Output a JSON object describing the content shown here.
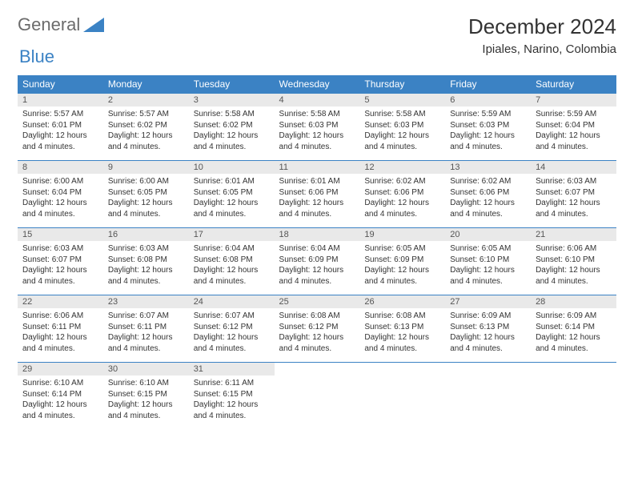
{
  "brand": {
    "part1": "General",
    "part2": "Blue"
  },
  "title": "December 2024",
  "location": "Ipiales, Narino, Colombia",
  "colors": {
    "header_bg": "#3b82c4",
    "header_text": "#ffffff",
    "daynum_bg": "#e9e9e9",
    "cell_border": "#3b82c4",
    "body_text": "#333333",
    "logo_gray": "#6b6b6b",
    "logo_blue": "#3b82c4",
    "page_bg": "#ffffff"
  },
  "typography": {
    "title_fontsize": 26,
    "location_fontsize": 15,
    "header_fontsize": 12,
    "daynum_fontsize": 11,
    "cell_fontsize": 10
  },
  "day_headers": [
    "Sunday",
    "Monday",
    "Tuesday",
    "Wednesday",
    "Thursday",
    "Friday",
    "Saturday"
  ],
  "weeks": [
    [
      {
        "num": "1",
        "sunrise": "5:57 AM",
        "sunset": "6:01 PM",
        "daylight": "12 hours and 4 minutes."
      },
      {
        "num": "2",
        "sunrise": "5:57 AM",
        "sunset": "6:02 PM",
        "daylight": "12 hours and 4 minutes."
      },
      {
        "num": "3",
        "sunrise": "5:58 AM",
        "sunset": "6:02 PM",
        "daylight": "12 hours and 4 minutes."
      },
      {
        "num": "4",
        "sunrise": "5:58 AM",
        "sunset": "6:03 PM",
        "daylight": "12 hours and 4 minutes."
      },
      {
        "num": "5",
        "sunrise": "5:58 AM",
        "sunset": "6:03 PM",
        "daylight": "12 hours and 4 minutes."
      },
      {
        "num": "6",
        "sunrise": "5:59 AM",
        "sunset": "6:03 PM",
        "daylight": "12 hours and 4 minutes."
      },
      {
        "num": "7",
        "sunrise": "5:59 AM",
        "sunset": "6:04 PM",
        "daylight": "12 hours and 4 minutes."
      }
    ],
    [
      {
        "num": "8",
        "sunrise": "6:00 AM",
        "sunset": "6:04 PM",
        "daylight": "12 hours and 4 minutes."
      },
      {
        "num": "9",
        "sunrise": "6:00 AM",
        "sunset": "6:05 PM",
        "daylight": "12 hours and 4 minutes."
      },
      {
        "num": "10",
        "sunrise": "6:01 AM",
        "sunset": "6:05 PM",
        "daylight": "12 hours and 4 minutes."
      },
      {
        "num": "11",
        "sunrise": "6:01 AM",
        "sunset": "6:06 PM",
        "daylight": "12 hours and 4 minutes."
      },
      {
        "num": "12",
        "sunrise": "6:02 AM",
        "sunset": "6:06 PM",
        "daylight": "12 hours and 4 minutes."
      },
      {
        "num": "13",
        "sunrise": "6:02 AM",
        "sunset": "6:06 PM",
        "daylight": "12 hours and 4 minutes."
      },
      {
        "num": "14",
        "sunrise": "6:03 AM",
        "sunset": "6:07 PM",
        "daylight": "12 hours and 4 minutes."
      }
    ],
    [
      {
        "num": "15",
        "sunrise": "6:03 AM",
        "sunset": "6:07 PM",
        "daylight": "12 hours and 4 minutes."
      },
      {
        "num": "16",
        "sunrise": "6:03 AM",
        "sunset": "6:08 PM",
        "daylight": "12 hours and 4 minutes."
      },
      {
        "num": "17",
        "sunrise": "6:04 AM",
        "sunset": "6:08 PM",
        "daylight": "12 hours and 4 minutes."
      },
      {
        "num": "18",
        "sunrise": "6:04 AM",
        "sunset": "6:09 PM",
        "daylight": "12 hours and 4 minutes."
      },
      {
        "num": "19",
        "sunrise": "6:05 AM",
        "sunset": "6:09 PM",
        "daylight": "12 hours and 4 minutes."
      },
      {
        "num": "20",
        "sunrise": "6:05 AM",
        "sunset": "6:10 PM",
        "daylight": "12 hours and 4 minutes."
      },
      {
        "num": "21",
        "sunrise": "6:06 AM",
        "sunset": "6:10 PM",
        "daylight": "12 hours and 4 minutes."
      }
    ],
    [
      {
        "num": "22",
        "sunrise": "6:06 AM",
        "sunset": "6:11 PM",
        "daylight": "12 hours and 4 minutes."
      },
      {
        "num": "23",
        "sunrise": "6:07 AM",
        "sunset": "6:11 PM",
        "daylight": "12 hours and 4 minutes."
      },
      {
        "num": "24",
        "sunrise": "6:07 AM",
        "sunset": "6:12 PM",
        "daylight": "12 hours and 4 minutes."
      },
      {
        "num": "25",
        "sunrise": "6:08 AM",
        "sunset": "6:12 PM",
        "daylight": "12 hours and 4 minutes."
      },
      {
        "num": "26",
        "sunrise": "6:08 AM",
        "sunset": "6:13 PM",
        "daylight": "12 hours and 4 minutes."
      },
      {
        "num": "27",
        "sunrise": "6:09 AM",
        "sunset": "6:13 PM",
        "daylight": "12 hours and 4 minutes."
      },
      {
        "num": "28",
        "sunrise": "6:09 AM",
        "sunset": "6:14 PM",
        "daylight": "12 hours and 4 minutes."
      }
    ],
    [
      {
        "num": "29",
        "sunrise": "6:10 AM",
        "sunset": "6:14 PM",
        "daylight": "12 hours and 4 minutes."
      },
      {
        "num": "30",
        "sunrise": "6:10 AM",
        "sunset": "6:15 PM",
        "daylight": "12 hours and 4 minutes."
      },
      {
        "num": "31",
        "sunrise": "6:11 AM",
        "sunset": "6:15 PM",
        "daylight": "12 hours and 4 minutes."
      },
      null,
      null,
      null,
      null
    ]
  ],
  "labels": {
    "sunrise": "Sunrise:",
    "sunset": "Sunset:",
    "daylight": "Daylight:"
  }
}
